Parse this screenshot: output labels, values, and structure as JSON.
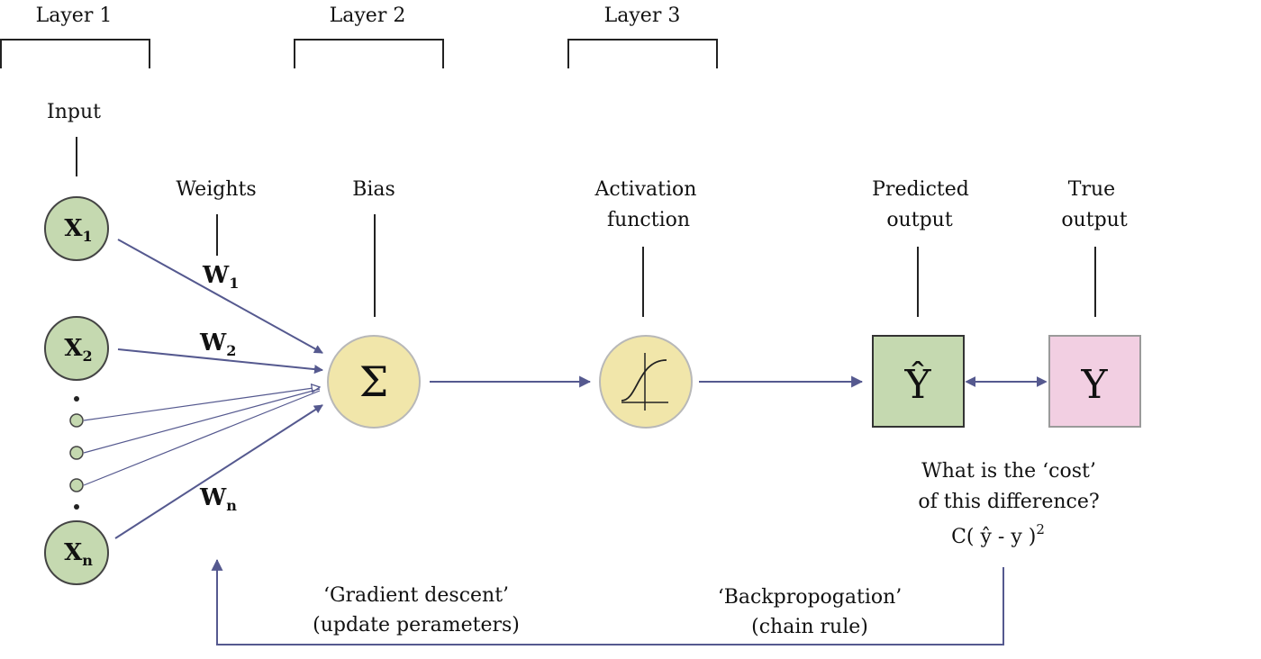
{
  "layers": [
    {
      "label": "Layer 1"
    },
    {
      "label": "Layer 2"
    },
    {
      "label": "Layer 3"
    }
  ],
  "labels": {
    "input": "Input",
    "weights": "Weights",
    "bias": "Bias",
    "activation_line1": "Activation",
    "activation_line2": "function",
    "predicted_line1": "Predicted",
    "predicted_line2": "output",
    "true_line1": "True",
    "true_line2": "output"
  },
  "inputs": [
    {
      "base": "X",
      "sub": "1"
    },
    {
      "base": "X",
      "sub": "2"
    },
    {
      "base": "X",
      "sub": "n"
    }
  ],
  "weights": [
    {
      "base": "W",
      "sub": "1"
    },
    {
      "base": "W",
      "sub": "2"
    },
    {
      "base": "W",
      "sub": "n"
    }
  ],
  "symbols": {
    "sum": "Σ",
    "predicted": "Ŷ",
    "true": "Y"
  },
  "cost": {
    "line1": "What is the ‘cost’",
    "line2": "of this difference?",
    "formula": "C( ŷ - y )",
    "exponent": "2"
  },
  "feedback": {
    "gradient_line1": "‘Gradient descent’",
    "gradient_line2": "(update perameters)",
    "backprop_line1": "‘Backpropogation’",
    "backprop_line2": "(chain rule)"
  },
  "colors": {
    "line": "#55598f",
    "input_fill": "#c5d9b0",
    "bias_fill": "#f1e6aa",
    "predicted_fill": "#c5d9b0",
    "true_fill": "#f2cfe2",
    "stroke": "#444444"
  }
}
